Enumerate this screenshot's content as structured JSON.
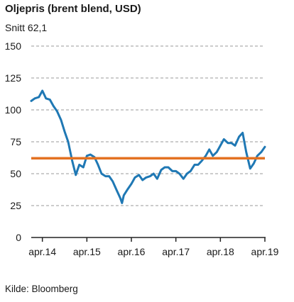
{
  "header": {
    "title": "Oljepris (brent blend, USD)",
    "subtitle": "Snitt 62,1"
  },
  "footer": {
    "source": "Kilde: Bloomberg"
  },
  "colors": {
    "line": "#1f78b4",
    "average": "#e37222",
    "grid": "#9a9a9a",
    "axis": "#222222"
  },
  "chart_data": {
    "type": "line",
    "title": "Oljepris (brent blend, USD)",
    "subtitle": "Snitt 62,1",
    "xlabel": "",
    "ylabel": "",
    "ylim": [
      0,
      150
    ],
    "yticks": [
      0,
      25,
      50,
      75,
      100,
      125,
      150
    ],
    "xlim": [
      2014.0,
      2019.25
    ],
    "xticks": [
      {
        "x": 2014.25,
        "label": "apr.14"
      },
      {
        "x": 2015.25,
        "label": "apr.15"
      },
      {
        "x": 2016.25,
        "label": "apr.16"
      },
      {
        "x": 2017.25,
        "label": "apr.17"
      },
      {
        "x": 2018.25,
        "label": "apr.18"
      },
      {
        "x": 2019.25,
        "label": "apr.19"
      }
    ],
    "grid": "horizontal dashed",
    "series": [
      {
        "x": [
          2014.0,
          2014.08,
          2014.17,
          2014.25,
          2014.33,
          2014.42,
          2014.5,
          2014.58,
          2014.67,
          2014.75,
          2014.83,
          2014.92,
          2015.0,
          2015.08,
          2015.17,
          2015.25,
          2015.33,
          2015.42,
          2015.5,
          2015.58,
          2015.67,
          2015.75,
          2015.83,
          2015.92,
          2016.0,
          2016.04,
          2016.08,
          2016.17,
          2016.25,
          2016.33,
          2016.42,
          2016.5,
          2016.58,
          2016.67,
          2016.75,
          2016.83,
          2016.92,
          2017.0,
          2017.08,
          2017.17,
          2017.25,
          2017.33,
          2017.42,
          2017.5,
          2017.58,
          2017.67,
          2017.75,
          2017.83,
          2017.92,
          2018.0,
          2018.08,
          2018.17,
          2018.25,
          2018.33,
          2018.42,
          2018.5,
          2018.58,
          2018.67,
          2018.75,
          2018.83,
          2018.92,
          2019.0,
          2019.08,
          2019.17,
          2019.25
        ],
        "y": [
          107,
          109,
          110,
          115,
          109,
          108,
          103,
          99,
          92,
          83,
          75,
          60,
          49,
          57,
          55,
          64,
          65,
          63,
          57,
          50,
          48,
          48,
          44,
          37,
          31,
          27,
          33,
          38,
          42,
          47,
          49,
          45,
          47,
          48,
          50,
          46,
          53,
          55,
          55,
          52,
          52,
          50,
          46,
          50,
          52,
          57,
          57,
          60,
          64,
          69,
          64,
          67,
          72,
          77,
          74,
          74,
          72,
          79,
          82,
          67,
          54,
          58,
          64,
          67,
          71
        ]
      }
    ],
    "reference_lines": [
      {
        "y": 62.1,
        "label": "Snitt 62,1"
      }
    ]
  }
}
